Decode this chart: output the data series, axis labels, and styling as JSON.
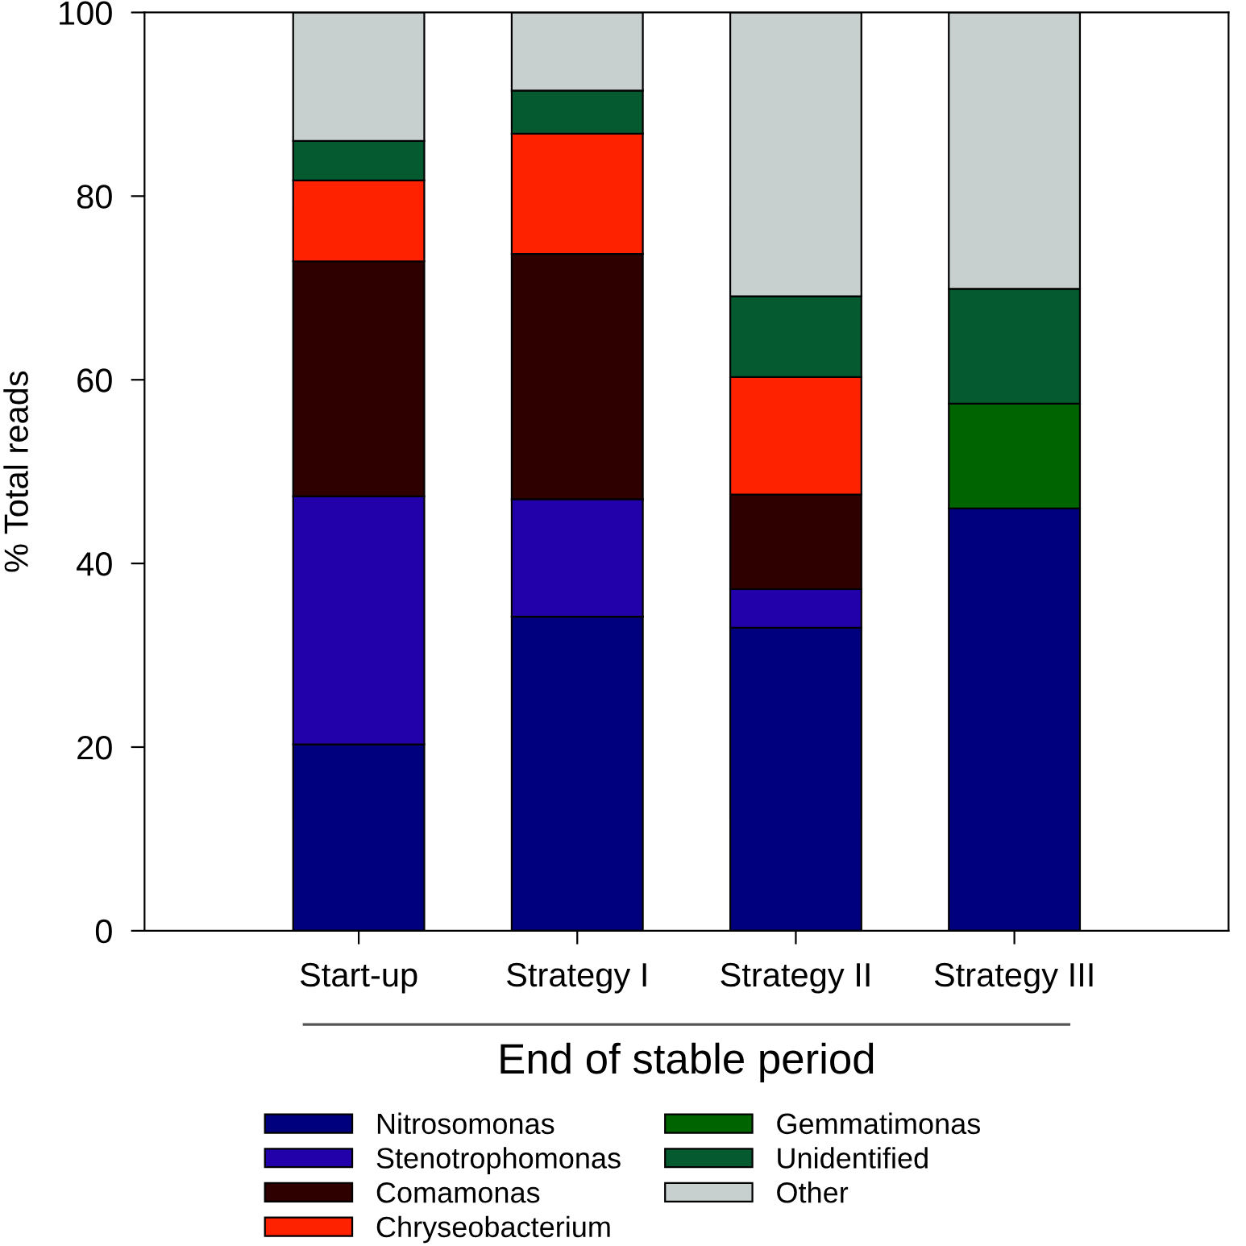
{
  "chart_data": {
    "type": "bar",
    "stacked": true,
    "ylabel": "% Total reads",
    "xlabel": "End of stable period",
    "categories": [
      "Start-up",
      "Strategy I",
      "Strategy II",
      "Strategy III"
    ],
    "series": [
      {
        "name": "Nitrosomonas",
        "color": "#00007f",
        "values": [
          20.3,
          34.2,
          33.0,
          46.0
        ]
      },
      {
        "name": "Stenotrophomonas",
        "color": "#2200aa",
        "values": [
          27.0,
          12.8,
          4.2,
          0
        ]
      },
      {
        "name": "Comamonas",
        "color": "#2e0000",
        "values": [
          25.6,
          26.7,
          10.3,
          0
        ]
      },
      {
        "name": "Chryseobacterium",
        "color": "#ff2200",
        "values": [
          8.8,
          13.1,
          12.8,
          0
        ]
      },
      {
        "name": "Gemmatimonas",
        "color": "#006400",
        "values": [
          0,
          0,
          0,
          11.4
        ]
      },
      {
        "name": "Unidentified",
        "color": "#055a2f",
        "values": [
          4.3,
          4.7,
          8.8,
          12.5
        ]
      },
      {
        "name": "Other",
        "color": "#c8d0cf",
        "values": [
          14.0,
          8.5,
          30.9,
          30.1
        ]
      }
    ],
    "ylim": [
      0,
      100
    ],
    "yticks": [
      0,
      20,
      40,
      60,
      80,
      100
    ],
    "grid": false,
    "legend": "bottom"
  }
}
